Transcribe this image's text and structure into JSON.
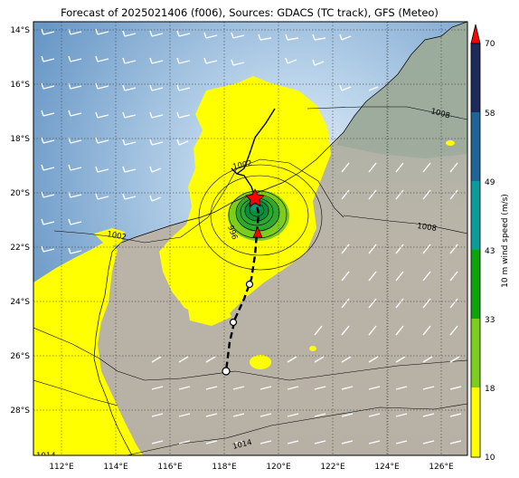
{
  "title": "Forecast of 2025021406 (f006), Sources: GDACS (TC track), GFS (Meteo)",
  "map": {
    "lat_labels": [
      "14°S",
      "16°S",
      "18°S",
      "20°S",
      "22°S",
      "24°S",
      "26°S",
      "28°S"
    ],
    "lon_labels": [
      "112°E",
      "114°E",
      "116°E",
      "118°E",
      "120°E",
      "122°E",
      "124°E",
      "126°E"
    ],
    "isobar_labels": [
      "1002",
      "1002",
      "1008",
      "1008",
      "1014",
      "996",
      "1014"
    ],
    "colors": {
      "ocean_deep": "#6e9fcc",
      "ocean_light": "#d6e6f3",
      "land": "#b9b2a6",
      "wind_yellow": "#ffff00",
      "wind_green": "#3cb43c",
      "track_color": "#000000",
      "storm_marker": "#ff0000"
    },
    "storm": {
      "current_position": "20.2°S 119.2°E",
      "track_type_past": "solid",
      "track_type_forecast": "dashed"
    }
  },
  "colorbar": {
    "label": "10 m wind speed (m/s)",
    "ticks": [
      "70",
      "58",
      "49",
      "43",
      "33",
      "18",
      "10"
    ],
    "segments": [
      "#ffff00",
      "#7ccd1e",
      "#0aa50a",
      "#0a9b9b",
      "#1e6496",
      "#1a3a6a",
      "#1e2b5a"
    ],
    "extend_color": "#ff0000"
  }
}
